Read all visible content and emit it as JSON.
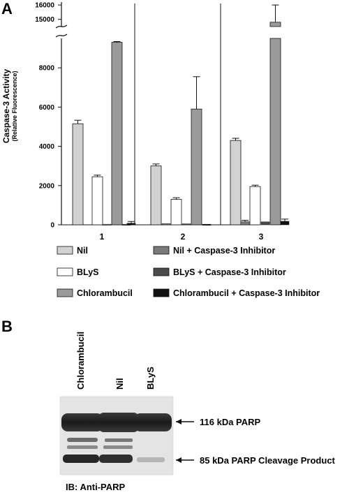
{
  "panel_a": {
    "label": "A",
    "ylabel": "Caspase-3 Activity",
    "ylabel_sub": "(Relative Fluorescence)"
  },
  "panel_b": {
    "label": "B",
    "lanes": [
      "Chlorambucil",
      "Nil",
      "BLyS"
    ],
    "band_labels": [
      "116 kDa PARP",
      "85 kDa PARP Cleavage Product"
    ],
    "blot_caption": "IB: Anti-PARP"
  },
  "chart_data": {
    "type": "bar",
    "categories": [
      "1",
      "2",
      "3"
    ],
    "ylabel": "Caspase-3 Activity (Relative Fluorescence)",
    "ylim_lower": [
      0,
      9500
    ],
    "ylim_upper": [
      14500,
      16200
    ],
    "yticks": [
      0,
      2000,
      4000,
      6000,
      8000,
      15000,
      16000
    ],
    "axis_break": true,
    "legend_placement": "bottom",
    "series": [
      {
        "name": "Nil",
        "color": "#d2d2d2",
        "values": [
          5150,
          3000,
          4300
        ],
        "errors": [
          180,
          100,
          110
        ]
      },
      {
        "name": "BLyS",
        "color": "#ffffff",
        "values": [
          2450,
          1300,
          1950
        ],
        "errors": [
          80,
          80,
          70
        ]
      },
      {
        "name": "Chlorambucil",
        "color": "#9a9a9a",
        "values": [
          9300,
          5900,
          14800
        ],
        "errors": [
          40,
          1650,
          1200
        ]
      },
      {
        "name": "Nil + Caspase-3 Inhibitor",
        "color": "#7a7a7a",
        "values": [
          30,
          60,
          160
        ],
        "errors": [
          0,
          0,
          70
        ]
      },
      {
        "name": "BLyS + Caspase-3 Inhibitor",
        "color": "#4a4a4a",
        "values": [
          30,
          50,
          150
        ],
        "errors": [
          0,
          0,
          0
        ]
      },
      {
        "name": "Chlorambucil + Caspase-3 Inhibitor",
        "color": "#111111",
        "values": [
          80,
          30,
          180
        ],
        "errors": [
          90,
          0,
          110
        ]
      }
    ]
  }
}
